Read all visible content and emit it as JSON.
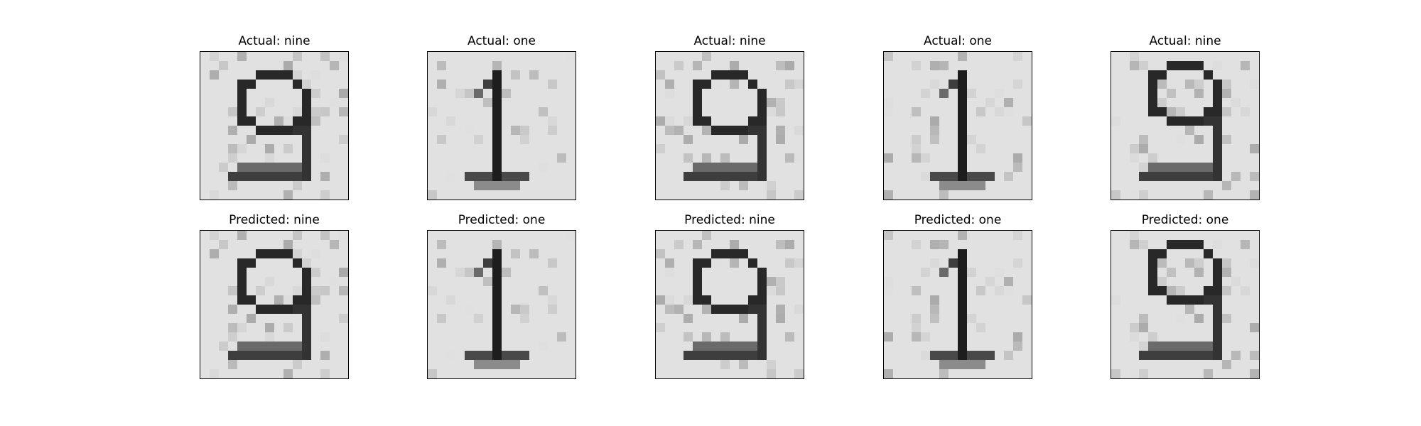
{
  "figure": {
    "colormap": "gray_r",
    "panels": [
      {
        "title": "Actual: nine",
        "digit": "nine"
      },
      {
        "title": "Actual: one",
        "digit": "one"
      },
      {
        "title": "Actual: nine",
        "digit": "nine"
      },
      {
        "title": "Actual: one",
        "digit": "one"
      },
      {
        "title": "Actual: nine",
        "digit": "nine"
      },
      {
        "title": "Predicted: nine",
        "digit": "nine"
      },
      {
        "title": "Predicted: one",
        "digit": "one"
      },
      {
        "title": "Predicted: nine",
        "digit": "nine"
      },
      {
        "title": "Predicted: one",
        "digit": "one"
      },
      {
        "title": "Predicted: one",
        "digit": "nine"
      }
    ]
  }
}
